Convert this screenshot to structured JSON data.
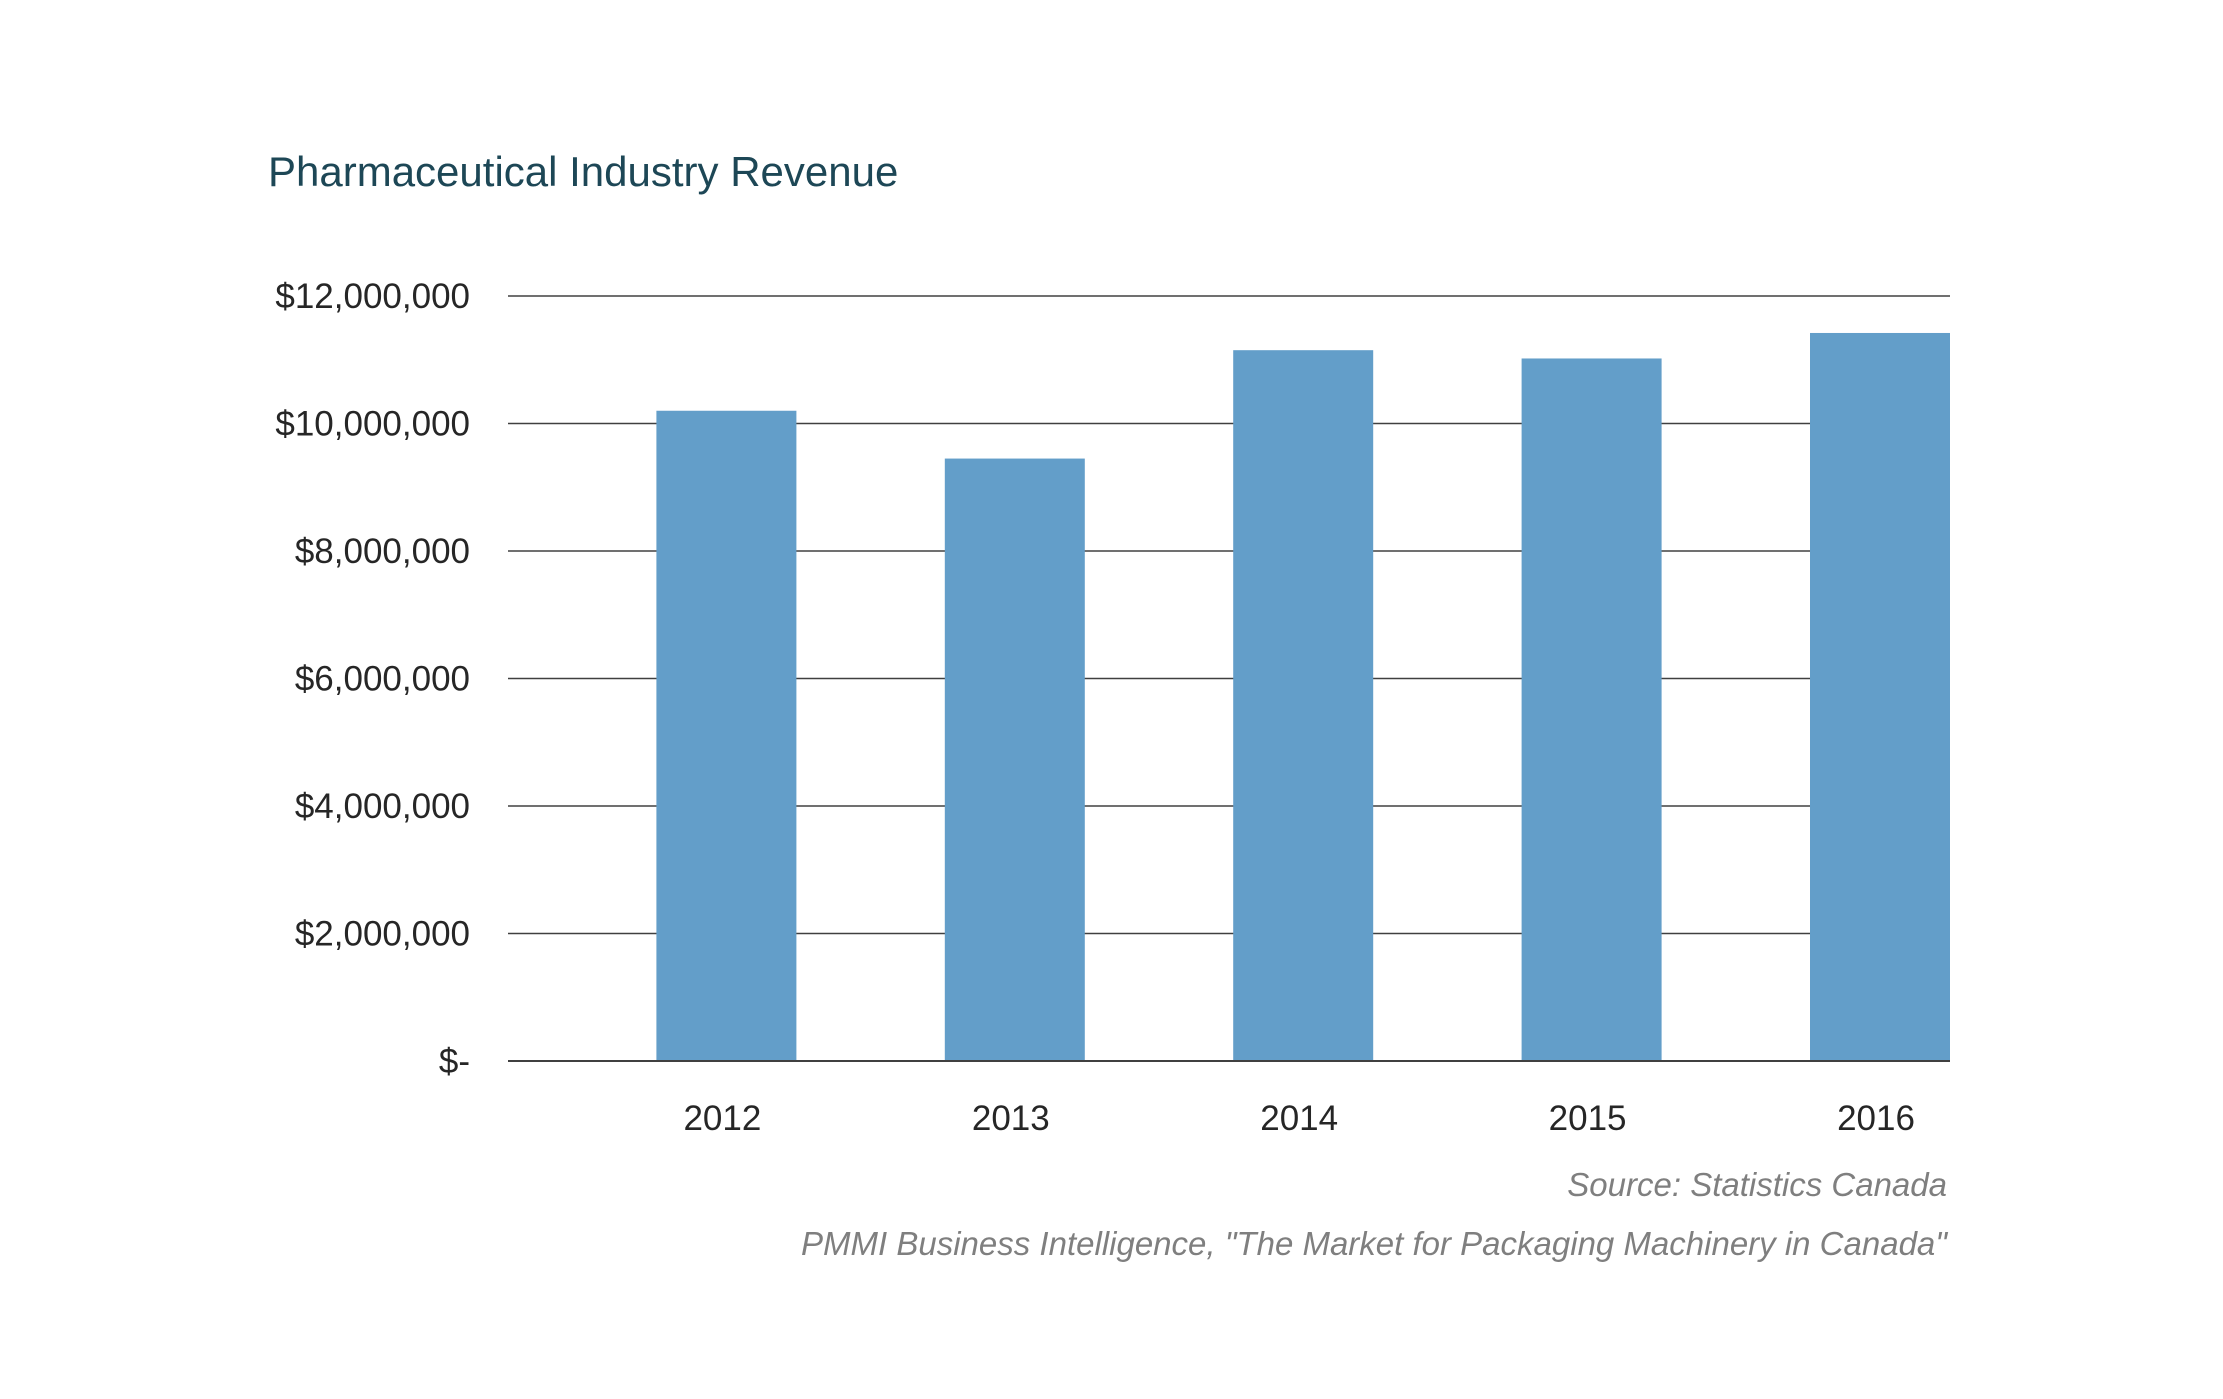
{
  "chart_data": {
    "type": "bar",
    "title": "Pharmaceutical Industry Revenue",
    "categories": [
      "2012",
      "2013",
      "2014",
      "2015",
      "2016"
    ],
    "values": [
      10200000,
      9450000,
      11150000,
      11020000,
      11420000
    ],
    "ylim": [
      0,
      12000000
    ],
    "ytick_values": [
      0,
      2000000,
      4000000,
      6000000,
      8000000,
      10000000,
      12000000
    ],
    "ytick_labels": [
      "$-",
      "$2,000,000",
      "$4,000,000",
      "$6,000,000",
      "$8,000,000",
      "$10,000,000",
      "$12,000,000"
    ],
    "grid": true,
    "legend": "none",
    "bar_color": "#639ec9",
    "title_color": "#1d4756"
  },
  "source_note": "Source: Statistics Canada",
  "citation_note": "PMMI Business Intelligence, \"The Market for Packaging Machinery in Canada\""
}
